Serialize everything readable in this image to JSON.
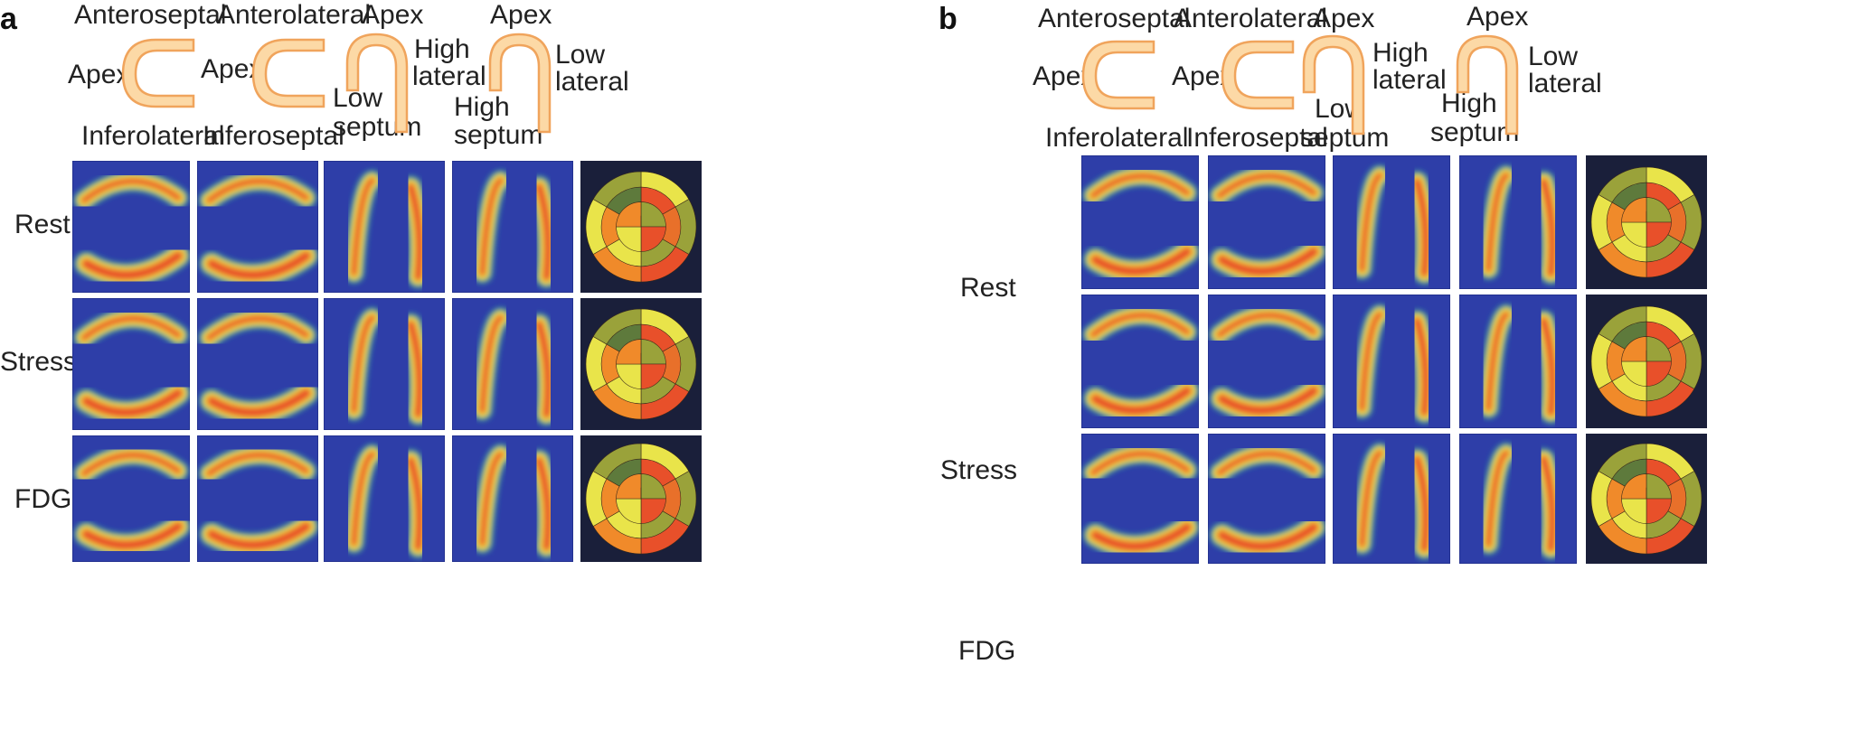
{
  "panels": [
    {
      "letter": "a",
      "views": [
        {
          "title": "Anteroseptal",
          "left": "Apex",
          "bottom": "Inferolateral"
        },
        {
          "title": "Anterolateral",
          "left": "Apex",
          "bottom": "Inferoseptal"
        },
        {
          "title": "Apex",
          "right1": "High",
          "right2": "lateral",
          "bottom1": "Low",
          "bottom2": "septum"
        },
        {
          "title": "Apex",
          "right1": "Low",
          "right2": "lateral",
          "bottom1": "High",
          "bottom2": "septum"
        }
      ],
      "rows": [
        "Rest",
        "Stress",
        "FDG"
      ]
    },
    {
      "letter": "b",
      "views": [
        {
          "title": "Anteroseptal",
          "left": "Apex",
          "bottom": "Inferolateral"
        },
        {
          "title": "Anterolateral",
          "left": "Apex",
          "bottom": "Inferoseptal"
        },
        {
          "title": "Apex",
          "right1": "High",
          "right2": "lateral",
          "bottom1": "Low",
          "bottom2": "septum"
        },
        {
          "title": "Apex",
          "right1": "Low",
          "right2": "lateral",
          "bottom1": "High",
          "bottom2": "septum"
        }
      ],
      "rows": [
        "Rest",
        "Stress",
        "FDG"
      ]
    }
  ],
  "colors": {
    "diagram_fill": "#fcd9a6",
    "diagram_stroke": "#f0a45c",
    "tile_bg": "#2e3ea8",
    "uptake_low": "#35a19a",
    "uptake_mid": "#e9e44a",
    "uptake_high": "#e8502a",
    "bullseye_bg_dark": "#1a1f3a"
  },
  "icons": {
    "short_axis": "c-shape-diagram-icon",
    "long_axis": "arch-diagram-icon",
    "polar_map": "bullseye-polar-map-icon"
  }
}
